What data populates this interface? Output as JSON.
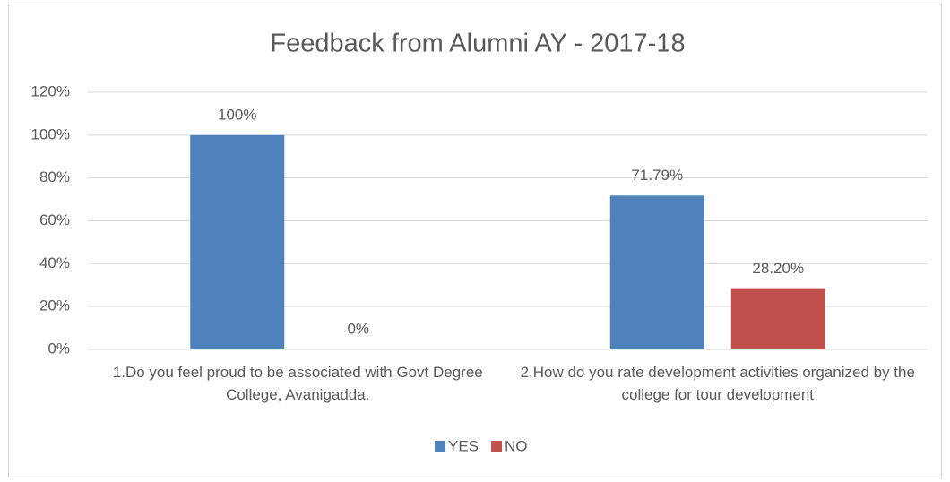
{
  "chart_data": {
    "type": "bar",
    "title": "Feedback from Alumni AY - 2017-18",
    "categories": [
      "1.Do you feel proud to be associated with Govt Degree College, Avanigadda.",
      "2.How do you rate development activities organized by the college for tour development"
    ],
    "series": [
      {
        "name": "YES",
        "color": "#4f81bd",
        "values": [
          100,
          71.79
        ],
        "value_labels": [
          "100%",
          "71.79%"
        ]
      },
      {
        "name": "NO",
        "color": "#c0504d",
        "values": [
          0,
          28.2
        ],
        "value_labels": [
          "0%",
          "28.20%"
        ]
      }
    ],
    "ylim": [
      0,
      120
    ],
    "yticks": [
      {
        "value": 0,
        "label": "0%"
      },
      {
        "value": 20,
        "label": "20%"
      },
      {
        "value": 40,
        "label": "40%"
      },
      {
        "value": 60,
        "label": "60%"
      },
      {
        "value": 80,
        "label": "80%"
      },
      {
        "value": 100,
        "label": "100%"
      },
      {
        "value": 120,
        "label": "120%"
      }
    ],
    "grid": true,
    "legend": "bottom"
  }
}
